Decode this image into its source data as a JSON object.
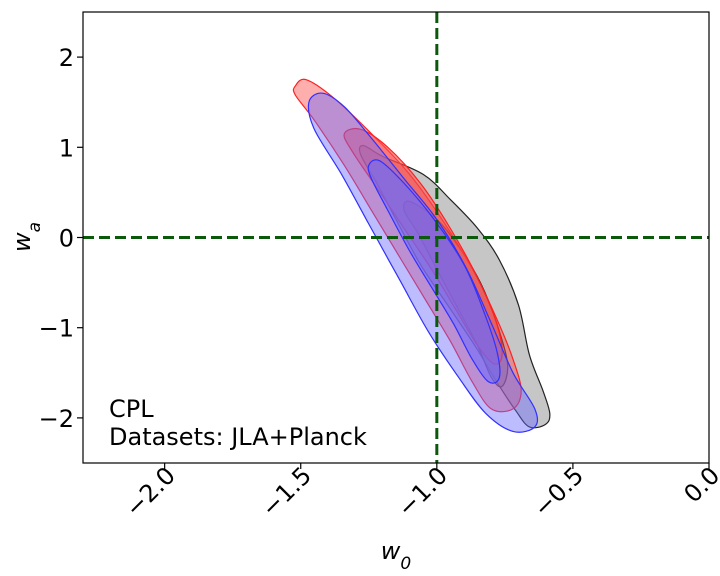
{
  "chart_data": {
    "type": "contour",
    "xlabel_base": "w",
    "xlabel_sub": "0",
    "ylabel_base": "w",
    "ylabel_sub": "a",
    "xlim": [
      -2.3,
      0.0
    ],
    "ylim": [
      -2.5,
      2.5
    ],
    "xticks": [
      -2.0,
      -1.5,
      -1.0,
      -0.5,
      0.0
    ],
    "xtick_labels": [
      "−2.0",
      "−1.5",
      "−1.0",
      "−0.5",
      "0.0"
    ],
    "yticks": [
      -2,
      -1,
      0,
      1,
      2
    ],
    "ytick_labels": [
      "−2",
      "−1",
      "0",
      "1",
      "2"
    ],
    "grid": false,
    "reference_lines": [
      {
        "axis": "x",
        "value": -1.0,
        "style": "dashed",
        "color": "#0b5a0b"
      },
      {
        "axis": "y",
        "value": 0.0,
        "style": "dashed",
        "color": "#0b5a0b"
      }
    ],
    "annotations": [
      "CPL",
      "Datasets: JLA+Planck"
    ],
    "series": [
      {
        "color": "#808080",
        "edge_color": "#222222",
        "contours": [
          {
            "level": "outer",
            "points": [
              [
                -1.27,
                1.02
              ],
              [
                -1.2,
                0.9
              ],
              [
                -1.05,
                0.7
              ],
              [
                -0.95,
                0.42
              ],
              [
                -0.85,
                0.1
              ],
              [
                -0.77,
                -0.25
              ],
              [
                -0.7,
                -0.75
              ],
              [
                -0.66,
                -1.3
              ],
              [
                -0.61,
                -1.7
              ],
              [
                -0.585,
                -1.95
              ],
              [
                -0.6,
                -2.07
              ],
              [
                -0.66,
                -2.1
              ],
              [
                -0.71,
                -1.92
              ],
              [
                -0.78,
                -1.6
              ],
              [
                -0.86,
                -1.2
              ],
              [
                -0.96,
                -0.75
              ],
              [
                -1.06,
                -0.3
              ],
              [
                -1.15,
                0.2
              ],
              [
                -1.22,
                0.6
              ],
              [
                -1.28,
                0.92
              ]
            ]
          },
          {
            "level": "inner",
            "points": [
              [
                -1.1,
                0.4
              ],
              [
                -1.0,
                0.2
              ],
              [
                -0.92,
                -0.1
              ],
              [
                -0.84,
                -0.5
              ],
              [
                -0.78,
                -0.95
              ],
              [
                -0.74,
                -1.4
              ],
              [
                -0.76,
                -1.65
              ],
              [
                -0.8,
                -1.55
              ],
              [
                -0.85,
                -1.2
              ],
              [
                -0.92,
                -0.8
              ],
              [
                -1.0,
                -0.35
              ],
              [
                -1.07,
                0.05
              ],
              [
                -1.12,
                0.3
              ]
            ]
          }
        ]
      },
      {
        "color": "#ff4c4c",
        "edge_color": "#ff2020",
        "contours": [
          {
            "level": "outer",
            "points": [
              [
                -1.52,
                1.68
              ],
              [
                -1.48,
                1.75
              ],
              [
                -1.38,
                1.55
              ],
              [
                -1.24,
                1.15
              ],
              [
                -1.1,
                0.7
              ],
              [
                -0.97,
                0.15
              ],
              [
                -0.86,
                -0.4
              ],
              [
                -0.78,
                -0.9
              ],
              [
                -0.72,
                -1.35
              ],
              [
                -0.69,
                -1.7
              ],
              [
                -0.72,
                -1.9
              ],
              [
                -0.8,
                -1.9
              ],
              [
                -0.87,
                -1.6
              ],
              [
                -0.95,
                -1.15
              ],
              [
                -1.04,
                -0.7
              ],
              [
                -1.13,
                -0.25
              ],
              [
                -1.23,
                0.25
              ],
              [
                -1.34,
                0.8
              ],
              [
                -1.45,
                1.3
              ],
              [
                -1.52,
                1.58
              ]
            ]
          },
          {
            "level": "inner",
            "points": [
              [
                -1.34,
                1.15
              ],
              [
                -1.28,
                1.2
              ],
              [
                -1.18,
                1.0
              ],
              [
                -1.06,
                0.6
              ],
              [
                -0.95,
                0.1
              ],
              [
                -0.85,
                -0.45
              ],
              [
                -0.78,
                -0.95
              ],
              [
                -0.76,
                -1.3
              ],
              [
                -0.79,
                -1.4
              ],
              [
                -0.85,
                -1.2
              ],
              [
                -0.93,
                -0.8
              ],
              [
                -1.02,
                -0.35
              ],
              [
                -1.12,
                0.1
              ],
              [
                -1.22,
                0.55
              ],
              [
                -1.31,
                0.95
              ]
            ]
          }
        ]
      },
      {
        "color": "#6a6aff",
        "edge_color": "#3030ff",
        "contours": [
          {
            "level": "outer",
            "points": [
              [
                -1.47,
                1.5
              ],
              [
                -1.42,
                1.6
              ],
              [
                -1.34,
                1.45
              ],
              [
                -1.24,
                1.1
              ],
              [
                -1.12,
                0.65
              ],
              [
                -1.0,
                0.2
              ],
              [
                -0.89,
                -0.35
              ],
              [
                -0.8,
                -0.95
              ],
              [
                -0.72,
                -1.5
              ],
              [
                -0.64,
                -1.9
              ],
              [
                -0.64,
                -2.1
              ],
              [
                -0.72,
                -2.15
              ],
              [
                -0.82,
                -1.95
              ],
              [
                -0.92,
                -1.55
              ],
              [
                -1.03,
                -1.05
              ],
              [
                -1.14,
                -0.45
              ],
              [
                -1.25,
                0.15
              ],
              [
                -1.35,
                0.7
              ],
              [
                -1.45,
                1.2
              ]
            ]
          },
          {
            "level": "inner",
            "points": [
              [
                -1.25,
                0.8
              ],
              [
                -1.21,
                0.85
              ],
              [
                -1.12,
                0.6
              ],
              [
                -1.01,
                0.2
              ],
              [
                -0.9,
                -0.3
              ],
              [
                -0.83,
                -0.8
              ],
              [
                -0.78,
                -1.25
              ],
              [
                -0.77,
                -1.55
              ],
              [
                -0.81,
                -1.6
              ],
              [
                -0.87,
                -1.35
              ],
              [
                -0.94,
                -0.95
              ],
              [
                -1.02,
                -0.55
              ],
              [
                -1.1,
                -0.15
              ],
              [
                -1.18,
                0.3
              ],
              [
                -1.24,
                0.65
              ]
            ]
          }
        ]
      }
    ]
  }
}
